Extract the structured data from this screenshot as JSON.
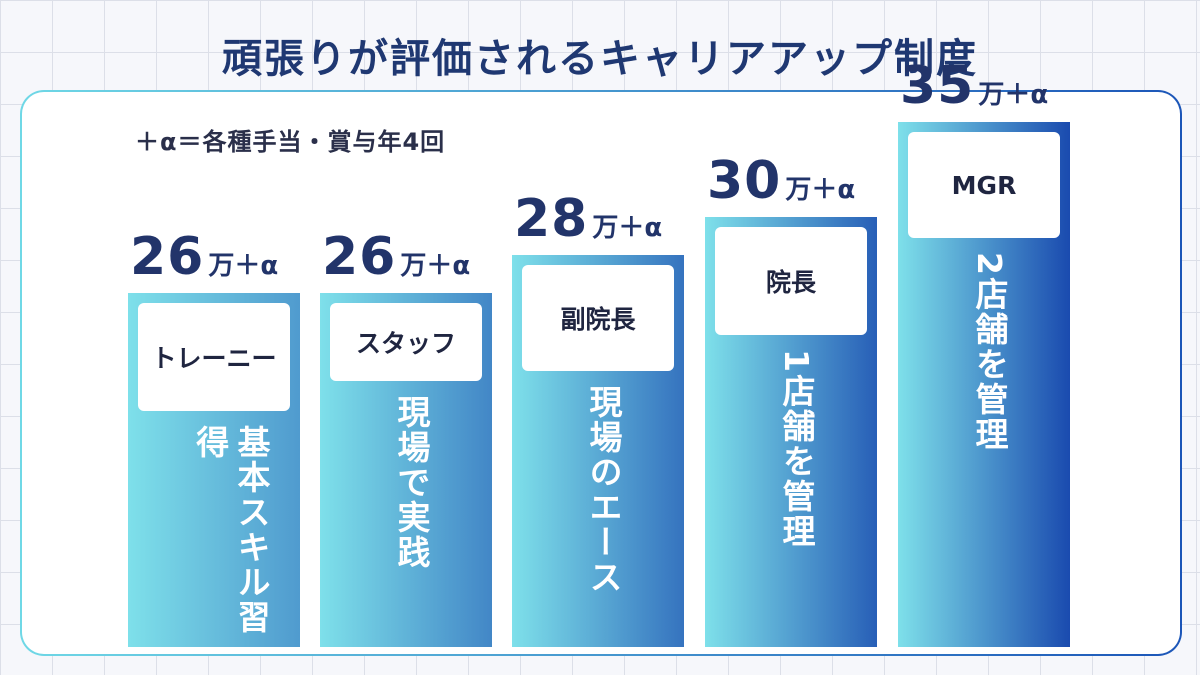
{
  "title": "頑張りが評価されるキャリアアップ制度",
  "note": "＋α＝各種手当・賞与年4回",
  "chart_data": {
    "type": "bar",
    "categories": [
      "トレーニー",
      "スタッフ",
      "副院長",
      "院長",
      "MGR"
    ],
    "values": [
      26,
      26,
      28,
      30,
      35
    ],
    "value_labels": [
      "26",
      "26",
      "28",
      "30",
      "35"
    ],
    "unit": "万＋α",
    "descriptions": [
      "基本スキル習得",
      "現場で実践",
      "現場のエース",
      "1店舗を管理",
      "2店舗を管理"
    ],
    "colors": {
      "gradient_start": "#7ee0ea",
      "gradient_end": "#1746ad",
      "value_text": "#22346a"
    }
  }
}
